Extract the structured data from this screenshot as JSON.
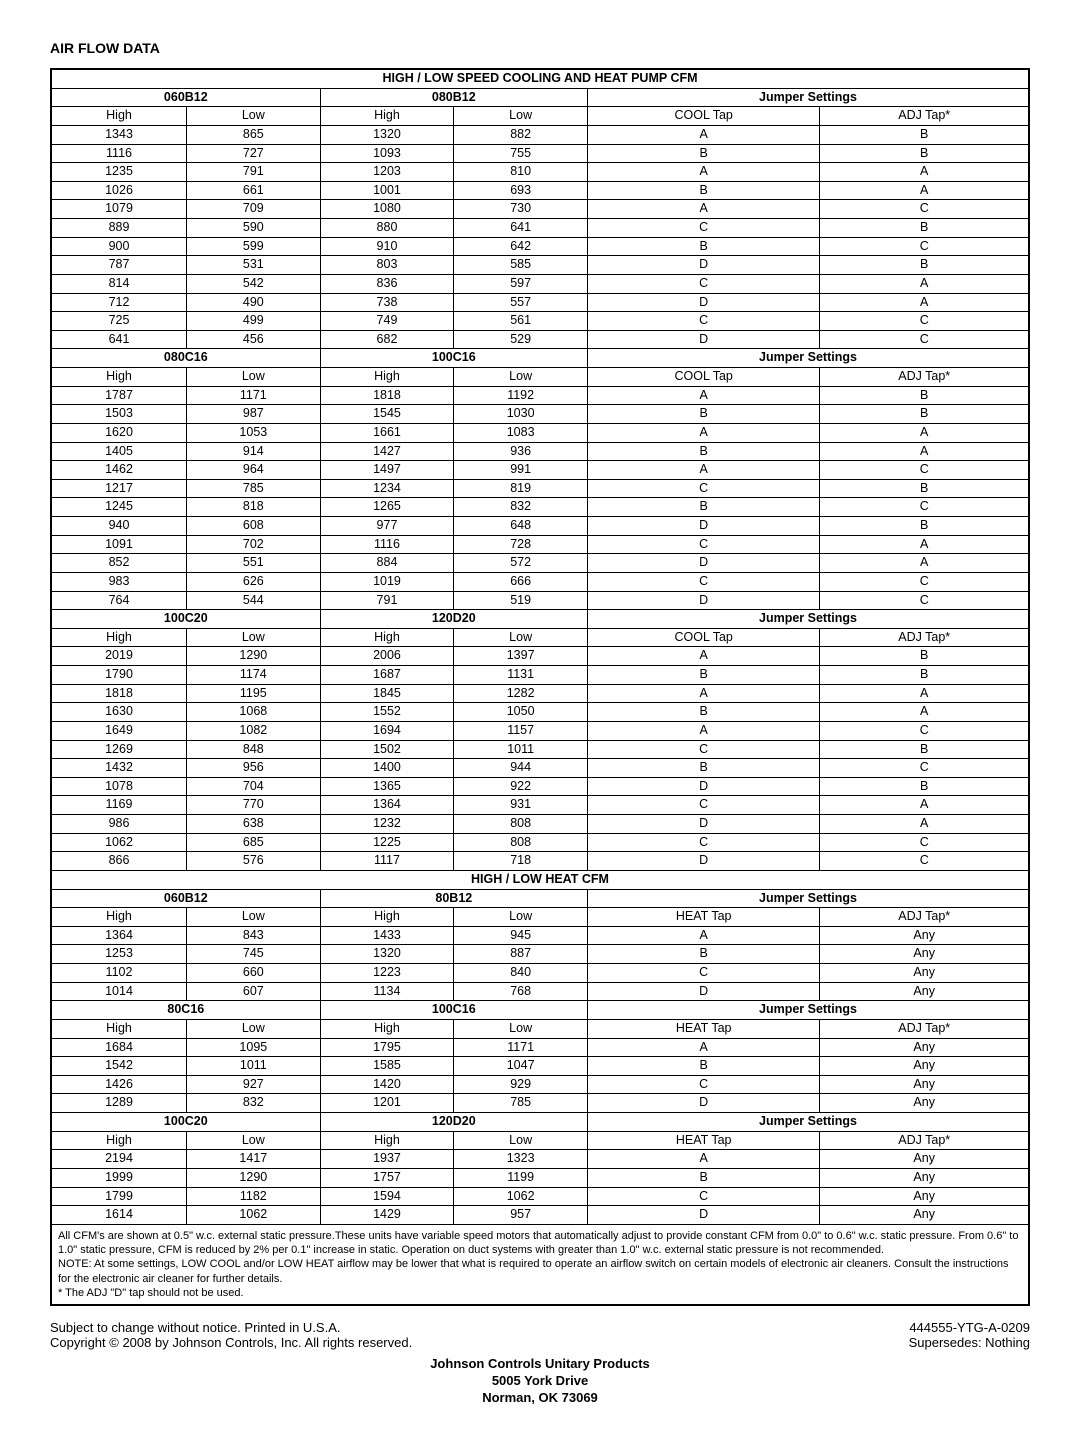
{
  "title": "AIR FLOW DATA",
  "jumper_label": "Jumper Settings",
  "sub_high": "High",
  "sub_low": "Low",
  "adj_tap": "ADJ Tap*",
  "cool_tap": "COOL Tap",
  "heat_tap": "HEAT Tap",
  "cooling_header": "HIGH / LOW SPEED COOLING AND HEAT PUMP CFM",
  "heat_header": "HIGH / LOW HEAT CFM",
  "cool_g1": {
    "m1": "060B12",
    "m2": "080B12",
    "rows": [
      [
        "1343",
        "865",
        "1320",
        "882",
        "A",
        "B"
      ],
      [
        "1116",
        "727",
        "1093",
        "755",
        "B",
        "B"
      ],
      [
        "1235",
        "791",
        "1203",
        "810",
        "A",
        "A"
      ],
      [
        "1026",
        "661",
        "1001",
        "693",
        "B",
        "A"
      ],
      [
        "1079",
        "709",
        "1080",
        "730",
        "A",
        "C"
      ],
      [
        "889",
        "590",
        "880",
        "641",
        "C",
        "B"
      ],
      [
        "900",
        "599",
        "910",
        "642",
        "B",
        "C"
      ],
      [
        "787",
        "531",
        "803",
        "585",
        "D",
        "B"
      ],
      [
        "814",
        "542",
        "836",
        "597",
        "C",
        "A"
      ],
      [
        "712",
        "490",
        "738",
        "557",
        "D",
        "A"
      ],
      [
        "725",
        "499",
        "749",
        "561",
        "C",
        "C"
      ],
      [
        "641",
        "456",
        "682",
        "529",
        "D",
        "C"
      ]
    ]
  },
  "cool_g2": {
    "m1": "080C16",
    "m2": "100C16",
    "rows": [
      [
        "1787",
        "1171",
        "1818",
        "1192",
        "A",
        "B"
      ],
      [
        "1503",
        "987",
        "1545",
        "1030",
        "B",
        "B"
      ],
      [
        "1620",
        "1053",
        "1661",
        "1083",
        "A",
        "A"
      ],
      [
        "1405",
        "914",
        "1427",
        "936",
        "B",
        "A"
      ],
      [
        "1462",
        "964",
        "1497",
        "991",
        "A",
        "C"
      ],
      [
        "1217",
        "785",
        "1234",
        "819",
        "C",
        "B"
      ],
      [
        "1245",
        "818",
        "1265",
        "832",
        "B",
        "C"
      ],
      [
        "940",
        "608",
        "977",
        "648",
        "D",
        "B"
      ],
      [
        "1091",
        "702",
        "1116",
        "728",
        "C",
        "A"
      ],
      [
        "852",
        "551",
        "884",
        "572",
        "D",
        "A"
      ],
      [
        "983",
        "626",
        "1019",
        "666",
        "C",
        "C"
      ],
      [
        "764",
        "544",
        "791",
        "519",
        "D",
        "C"
      ]
    ]
  },
  "cool_g3": {
    "m1": "100C20",
    "m2": "120D20",
    "rows": [
      [
        "2019",
        "1290",
        "2006",
        "1397",
        "A",
        "B"
      ],
      [
        "1790",
        "1174",
        "1687",
        "1131",
        "B",
        "B"
      ],
      [
        "1818",
        "1195",
        "1845",
        "1282",
        "A",
        "A"
      ],
      [
        "1630",
        "1068",
        "1552",
        "1050",
        "B",
        "A"
      ],
      [
        "1649",
        "1082",
        "1694",
        "1157",
        "A",
        "C"
      ],
      [
        "1269",
        "848",
        "1502",
        "1011",
        "C",
        "B"
      ],
      [
        "1432",
        "956",
        "1400",
        "944",
        "B",
        "C"
      ],
      [
        "1078",
        "704",
        "1365",
        "922",
        "D",
        "B"
      ],
      [
        "1169",
        "770",
        "1364",
        "931",
        "C",
        "A"
      ],
      [
        "986",
        "638",
        "1232",
        "808",
        "D",
        "A"
      ],
      [
        "1062",
        "685",
        "1225",
        "808",
        "C",
        "C"
      ],
      [
        "866",
        "576",
        "1117",
        "718",
        "D",
        "C"
      ]
    ]
  },
  "heat_g1": {
    "m1": "060B12",
    "m2": "80B12",
    "rows": [
      [
        "1364",
        "843",
        "1433",
        "945",
        "A",
        "Any"
      ],
      [
        "1253",
        "745",
        "1320",
        "887",
        "B",
        "Any"
      ],
      [
        "1102",
        "660",
        "1223",
        "840",
        "C",
        "Any"
      ],
      [
        "1014",
        "607",
        "1134",
        "768",
        "D",
        "Any"
      ]
    ]
  },
  "heat_g2": {
    "m1": "80C16",
    "m2": "100C16",
    "rows": [
      [
        "1684",
        "1095",
        "1795",
        "1171",
        "A",
        "Any"
      ],
      [
        "1542",
        "1011",
        "1585",
        "1047",
        "B",
        "Any"
      ],
      [
        "1426",
        "927",
        "1420",
        "929",
        "C",
        "Any"
      ],
      [
        "1289",
        "832",
        "1201",
        "785",
        "D",
        "Any"
      ]
    ]
  },
  "heat_g3": {
    "m1": "100C20",
    "m2": "120D20",
    "rows": [
      [
        "2194",
        "1417",
        "1937",
        "1323",
        "A",
        "Any"
      ],
      [
        "1999",
        "1290",
        "1757",
        "1199",
        "B",
        "Any"
      ],
      [
        "1799",
        "1182",
        "1594",
        "1062",
        "C",
        "Any"
      ],
      [
        "1614",
        "1062",
        "1429",
        "957",
        "D",
        "Any"
      ]
    ]
  },
  "footnote1": "All CFM's are shown at 0.5\" w.c. external static pressure.These units have variable speed motors that automatically adjust to provide constant CFM from 0.0\" to 0.6\" w.c. static pressure. From 0.6\" to 1.0\" static pressure, CFM is reduced by 2% per 0.1\" increase in static. Operation on duct systems with greater than 1.0\" w.c. external static pressure is not recommended.",
  "footnote2": "NOTE: At some settings, LOW COOL and/or LOW HEAT airflow may be lower that what is required to operate an airflow switch on certain models of electronic air cleaners. Consult the instructions for the electronic air cleaner for further details.",
  "footnote3": "* The ADJ \"D\" tap should not be used.",
  "change_notice": "Subject to change without notice. Printed in U.S.A.",
  "copyright": "Copyright © 2008 by Johnson Controls, Inc. All rights reserved.",
  "doc_number": "444555-YTG-A-0209",
  "supersedes": "Supersedes: Nothing",
  "company1": "Johnson Controls Unitary Products",
  "company2": "5005 York Drive",
  "company3": "Norman, OK 73069"
}
